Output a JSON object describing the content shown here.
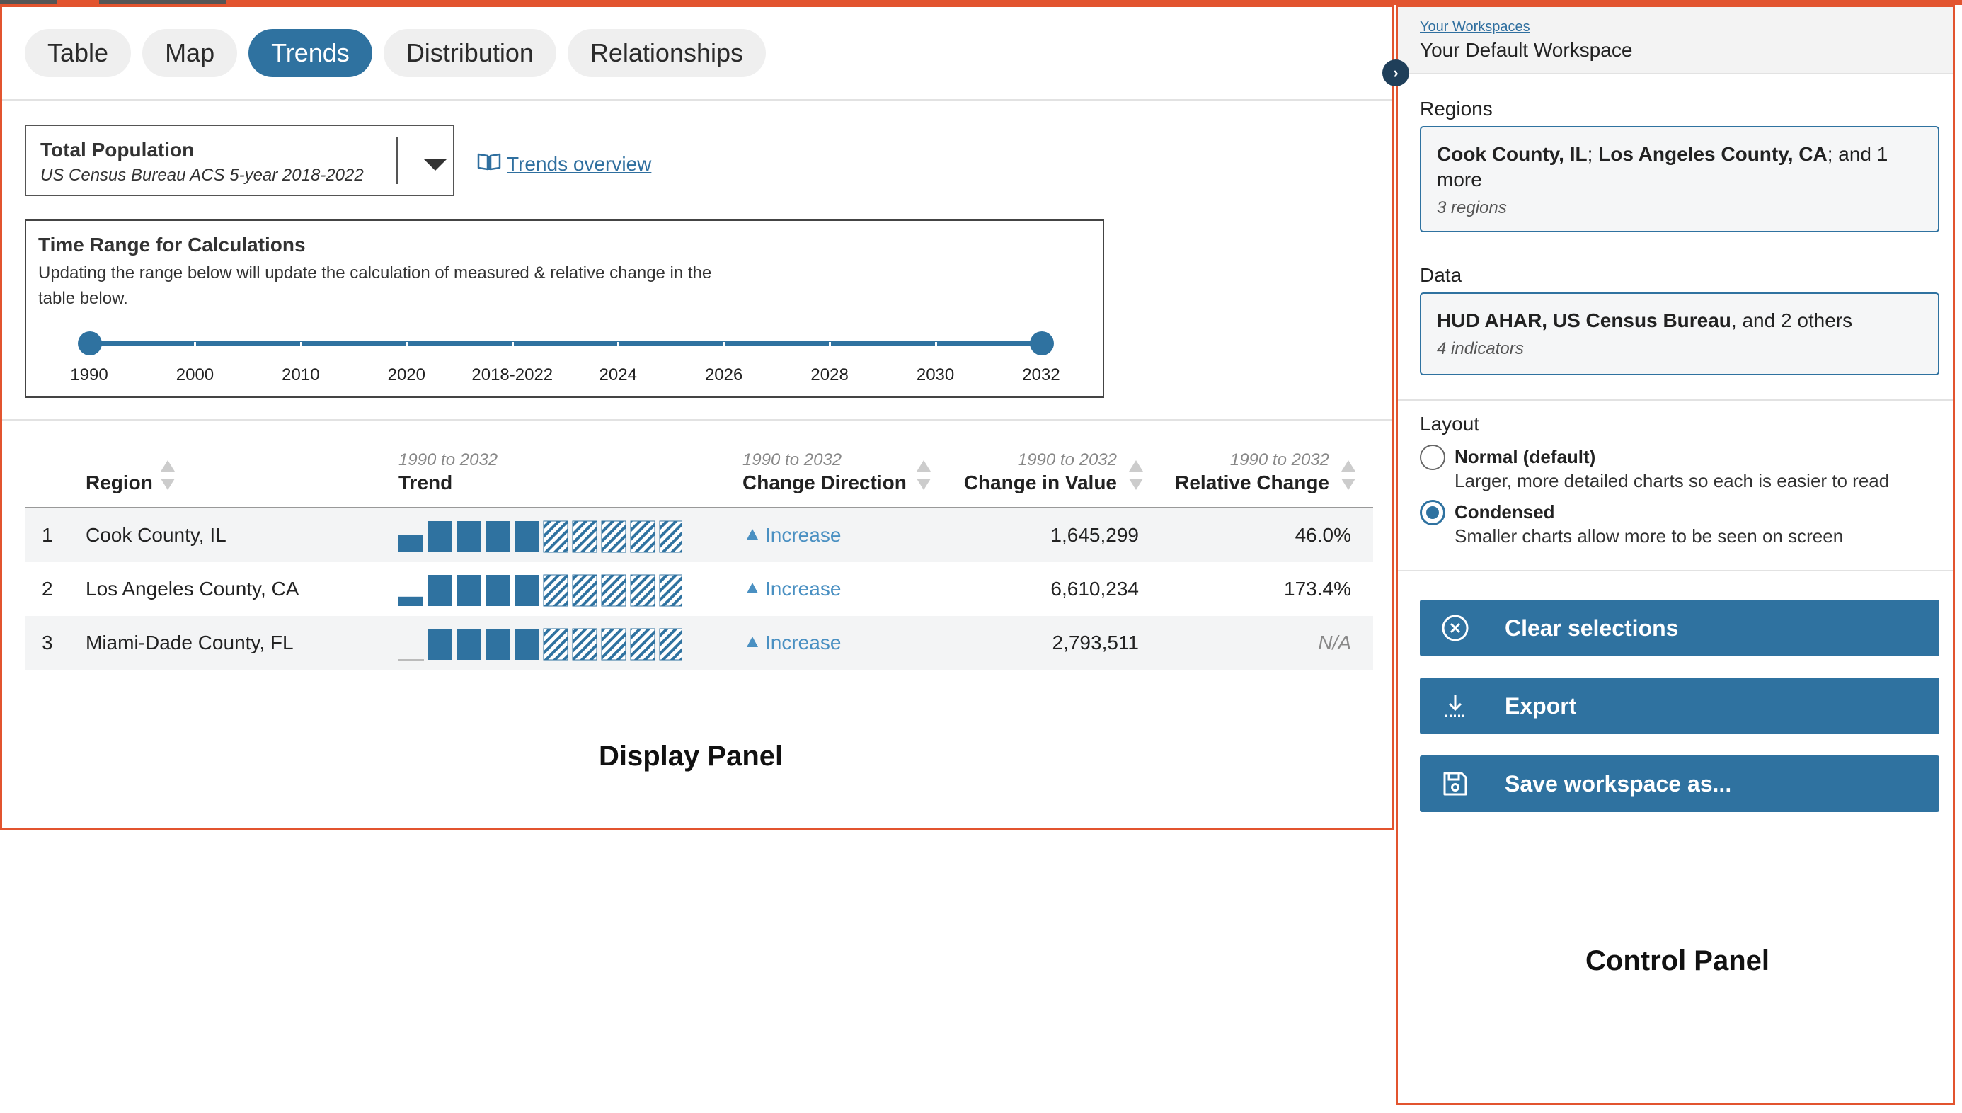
{
  "tabs": [
    {
      "label": "Table",
      "active": false
    },
    {
      "label": "Map",
      "active": false
    },
    {
      "label": "Trends",
      "active": true
    },
    {
      "label": "Distribution",
      "active": false
    },
    {
      "label": "Relationships",
      "active": false
    }
  ],
  "indicator": {
    "title": "Total Population",
    "source": "US Census Bureau ACS 5-year 2018-2022"
  },
  "overview_link": "Trends overview",
  "time_range": {
    "title": "Time Range for Calculations",
    "description": "Updating the range below will update the calculation of measured & relative change in the table below.",
    "labels": [
      "1990",
      "2000",
      "2010",
      "2020",
      "2018-2022",
      "2024",
      "2026",
      "2028",
      "2030",
      "2032"
    ],
    "selected_start": "1990",
    "selected_end": "2032"
  },
  "table": {
    "range_label": "1990 to 2032",
    "columns": {
      "region": "Region",
      "trend": "Trend",
      "direction": "Change Direction",
      "value": "Change in Value",
      "relative": "Relative Change"
    },
    "rows": [
      {
        "rank": "1",
        "region": "Cook County, IL",
        "direction": "Increase",
        "value": "1,645,299",
        "relative": "46.0%",
        "relative_na": false
      },
      {
        "rank": "2",
        "region": "Los Angeles County, CA",
        "direction": "Increase",
        "value": "6,610,234",
        "relative": "173.4%",
        "relative_na": false
      },
      {
        "rank": "3",
        "region": "Miami-Dade County, FL",
        "direction": "Increase",
        "value": "2,793,511",
        "relative": "N/A",
        "relative_na": true
      }
    ]
  },
  "labels": {
    "display_panel": "Display Panel",
    "control_panel": "Control Panel"
  },
  "control_panel": {
    "workspaces_link": "Your Workspaces",
    "workspace_name": "Your Default Workspace",
    "regions_label": "Regions",
    "regions_bold_1": "Cook County, IL",
    "regions_sep": "; ",
    "regions_bold_2": "Los Angeles County, CA",
    "regions_rest": "; and 1 more",
    "regions_count": "3 regions",
    "data_label": "Data",
    "data_bold": "HUD AHAR, US Census Bureau",
    "data_rest": ", and 2 others",
    "data_count": "4 indicators",
    "layout_label": "Layout",
    "layout_options": [
      {
        "title": "Normal (default)",
        "desc": "Larger, more detailed charts so each is easier to read",
        "checked": false
      },
      {
        "title": "Condensed",
        "desc": "Smaller charts allow more to be seen on screen",
        "checked": true
      }
    ],
    "buttons": {
      "clear": "Clear selections",
      "export": "Export",
      "save": "Save workspace as..."
    }
  },
  "colors": {
    "accent": "#2f72a0",
    "annotation_border": "#e2542f",
    "increase": "#4a90c2"
  }
}
